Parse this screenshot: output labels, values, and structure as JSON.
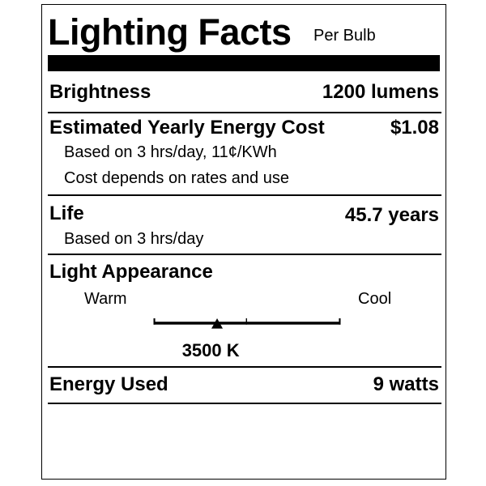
{
  "header": {
    "title": "Lighting Facts",
    "subtitle": "Per Bulb"
  },
  "brightness": {
    "label": "Brightness",
    "value": "1200 lumens"
  },
  "energy_cost": {
    "label": "Estimated Yearly Energy Cost",
    "value": "$1.08",
    "note1": "Based on 3 hrs/day, 11¢/KWh",
    "note2": "Cost depends on rates and use"
  },
  "life": {
    "label": "Life",
    "value": "45.7 years",
    "note": "Based on 3 hrs/day"
  },
  "appearance": {
    "label": "Light Appearance",
    "warm": "Warm",
    "cool": "Cool",
    "value": "3500 K",
    "marker_fraction": 0.34
  },
  "energy_used": {
    "label": "Energy Used",
    "value": "9 watts"
  }
}
